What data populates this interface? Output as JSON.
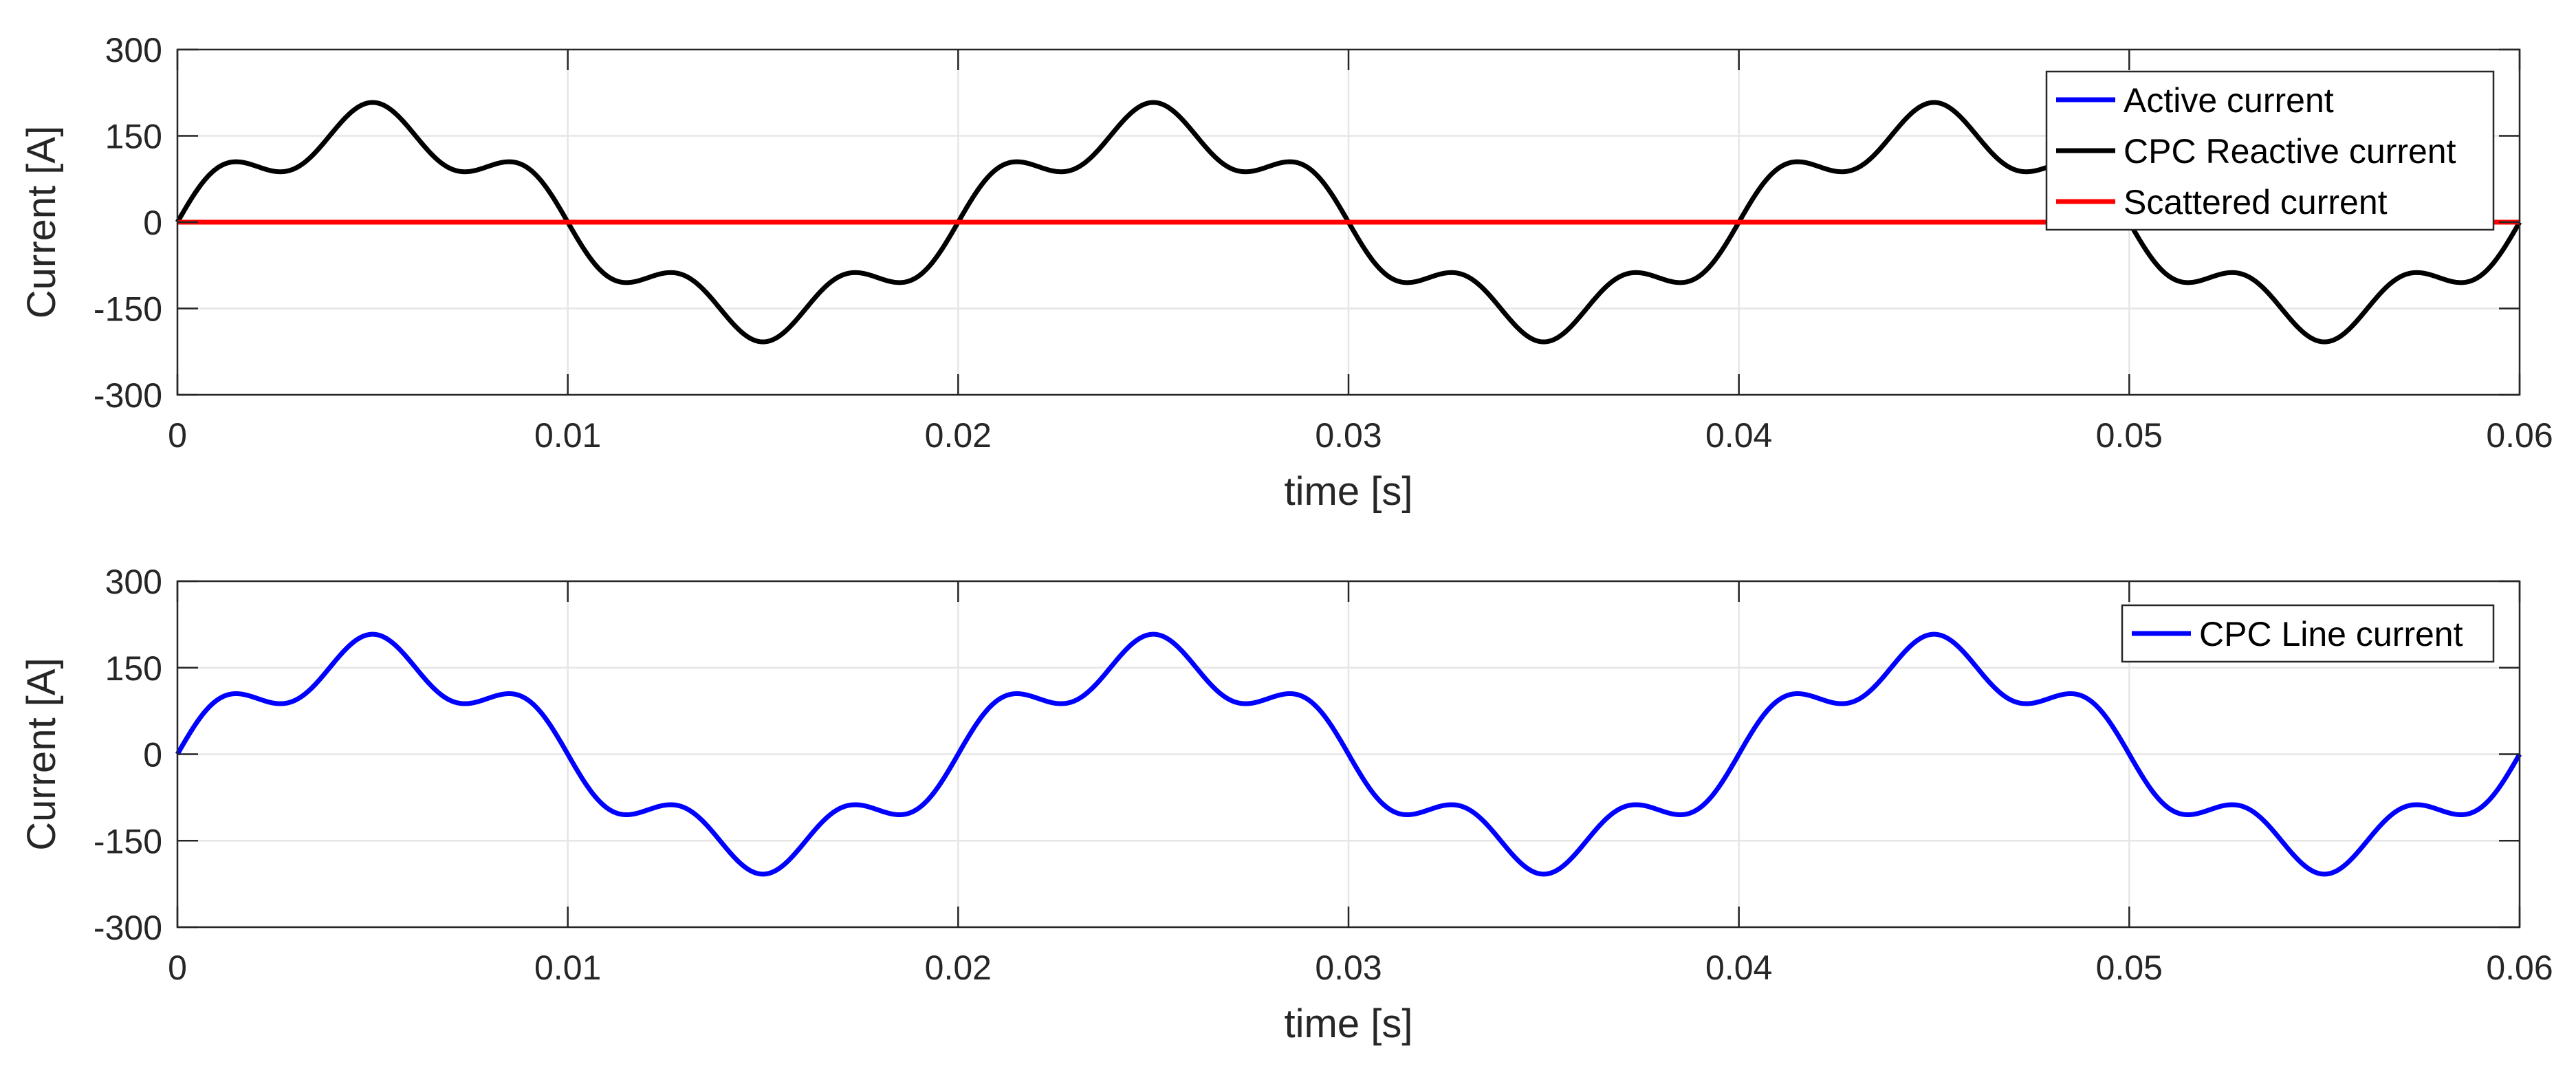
{
  "chart_data": [
    {
      "type": "line",
      "xlabel": "time [s]",
      "ylabel": "Current [A]",
      "xlim": [
        0,
        0.06
      ],
      "ylim": [
        -300,
        300
      ],
      "xticks": [
        "0",
        "0.01",
        "0.02",
        "0.03",
        "0.04",
        "0.05",
        "0.06"
      ],
      "yticks": [
        "-300",
        "-150",
        "0",
        "150",
        "300"
      ],
      "grid": true,
      "legend_position": "top-right",
      "waveform": {
        "fundamental_hz": 50,
        "fundamental_amplitude": 166.4,
        "harmonic_order": 5,
        "harmonic_amplitude": 41.6
      },
      "series": [
        {
          "name": "Active current",
          "color": "#0000ff",
          "shape": "zero",
          "values_note": "0 A"
        },
        {
          "name": "CPC Reactive current",
          "color": "#000000",
          "shape": "wave"
        },
        {
          "name": "Scattered current",
          "color": "#ff0000",
          "shape": "zero"
        }
      ]
    },
    {
      "type": "line",
      "xlabel": "time [s]",
      "ylabel": "Current [A]",
      "xlim": [
        0,
        0.06
      ],
      "ylim": [
        -300,
        300
      ],
      "xticks": [
        "0",
        "0.01",
        "0.02",
        "0.03",
        "0.04",
        "0.05",
        "0.06"
      ],
      "yticks": [
        "-300",
        "-150",
        "0",
        "150",
        "300"
      ],
      "grid": true,
      "legend_position": "top-right",
      "waveform": {
        "fundamental_hz": 50,
        "fundamental_amplitude": 166.4,
        "harmonic_order": 5,
        "harmonic_amplitude": 41.6
      },
      "series": [
        {
          "name": "CPC Line current",
          "color": "#0000ff",
          "shape": "wave"
        }
      ]
    }
  ]
}
